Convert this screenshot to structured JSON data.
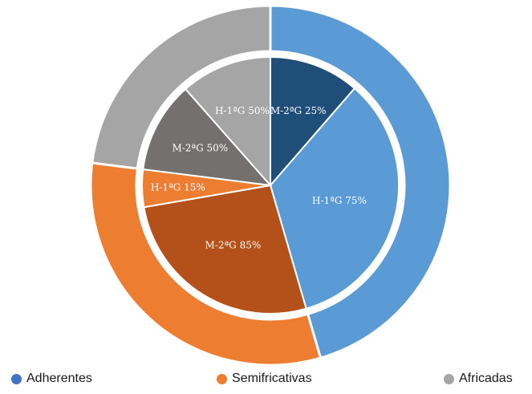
{
  "chart_data": {
    "type": "pie",
    "subtype": "sunburst",
    "title": "",
    "rings": {
      "outer": [
        {
          "name": "Adherentes",
          "value": 45.5,
          "color": "#5b9bd5"
        },
        {
          "name": "Semifricativas",
          "value": 31.5,
          "color": "#ed7d31"
        },
        {
          "name": "Africadas",
          "value": 23.0,
          "color": "#a5a5a5"
        }
      ],
      "inner": [
        {
          "parent": "Adherentes",
          "label": "M-2ªG 25%",
          "value": 11.375,
          "color": "#1f4e79"
        },
        {
          "parent": "Adherentes",
          "label": "H-1ªG 75%",
          "value": 34.125,
          "color": "#5b9bd5"
        },
        {
          "parent": "Semifricativas",
          "label": "M-2ªG 85%",
          "value": 26.775,
          "color": "#b4501a"
        },
        {
          "parent": "Semifricativas",
          "label": "H-1ªG 15%",
          "value": 4.725,
          "color": "#ed7d31"
        },
        {
          "parent": "Africadas",
          "label": "M-2ªG 50%",
          "value": 11.5,
          "color": "#747070"
        },
        {
          "parent": "Africadas",
          "label": "H-1ªG 50%",
          "value": 11.5,
          "color": "#a5a5a5"
        }
      ]
    },
    "legend": {
      "placement": "bottom",
      "items": [
        {
          "label": "Adherentes",
          "color": "#4472c4"
        },
        {
          "label": "Semifricativas",
          "color": "#ed7d31"
        },
        {
          "label": "Africadas",
          "color": "#a5a5a5"
        }
      ]
    }
  }
}
